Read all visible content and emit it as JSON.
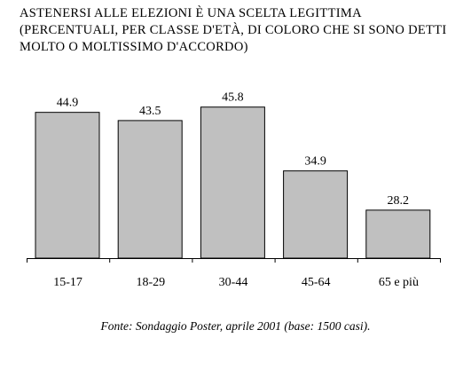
{
  "chart_data": {
    "type": "bar",
    "title": "Astenersi alle elezioni è una scelta legittima (percentuali, per classe d'età, di coloro che si sono detti molto o moltissimo d'accordo)",
    "categories": [
      "15-17",
      "18-29",
      "30-44",
      "45-64",
      "65 e più"
    ],
    "values": [
      44.9,
      43.5,
      45.8,
      34.9,
      28.2
    ],
    "value_labels": [
      "44.9",
      "43.5",
      "45.8",
      "34.9",
      "28.2"
    ],
    "ylim": [
      20,
      50
    ],
    "grid": false,
    "legend": "none",
    "bar_color": "#c0c0c0",
    "source": "Fonte: Sondaggio Poster, aprile 2001 (base: 1500 casi)."
  }
}
